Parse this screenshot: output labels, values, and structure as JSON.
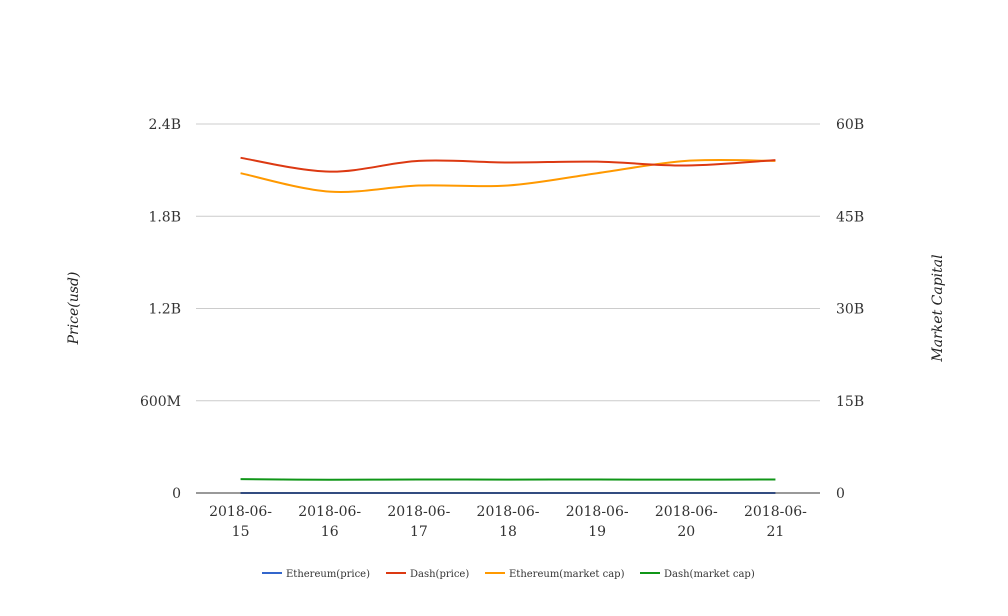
{
  "chart_data": {
    "type": "line",
    "categories": [
      "2018-06-15",
      "2018-06-16",
      "2018-06-17",
      "2018-06-18",
      "2018-06-19",
      "2018-06-20",
      "2018-06-21"
    ],
    "category_labels": [
      [
        "2018-06-",
        "15"
      ],
      [
        "2018-06-",
        "16"
      ],
      [
        "2018-06-",
        "17"
      ],
      [
        "2018-06-",
        "18"
      ],
      [
        "2018-06-",
        "19"
      ],
      [
        "2018-06-",
        "20"
      ],
      [
        "2018-06-",
        "21"
      ]
    ],
    "ylabel": "Price(usd)",
    "y2label": "Market Capital",
    "ylim": [
      0,
      2400000000
    ],
    "y2lim": [
      0,
      60000000000
    ],
    "yticks": [
      0,
      600000000,
      1200000000,
      1800000000,
      2400000000
    ],
    "ytick_labels": [
      "0",
      "600M",
      "1.2B",
      "1.8B",
      "2.4B"
    ],
    "y2ticks": [
      0,
      15000000000,
      30000000000,
      45000000000,
      60000000000
    ],
    "y2tick_labels": [
      "0",
      "15B",
      "30B",
      "45B",
      "60B"
    ],
    "grid": true,
    "legend_position": "bottom",
    "series": [
      {
        "name": "Ethereum(price)",
        "axis": "left",
        "color": "#3366cc",
        "values": [
          520,
          490,
          500,
          495,
          530,
          535,
          525
        ]
      },
      {
        "name": "Dash(price)",
        "axis": "left",
        "color": "#dc3912",
        "values": [
          2180000000,
          2090000000,
          2160000000,
          2150000000,
          2155000000,
          2130000000,
          2165000000
        ]
      },
      {
        "name": "Ethereum(market cap)",
        "axis": "right",
        "color": "#ff9900",
        "values": [
          52000000000,
          49000000000,
          50000000000,
          50000000000,
          52000000000,
          54000000000,
          54000000000
        ]
      },
      {
        "name": "Dash(market cap)",
        "axis": "right",
        "color": "#109618",
        "values": [
          2250000000,
          2150000000,
          2200000000,
          2180000000,
          2190000000,
          2170000000,
          2190000000
        ]
      }
    ]
  }
}
